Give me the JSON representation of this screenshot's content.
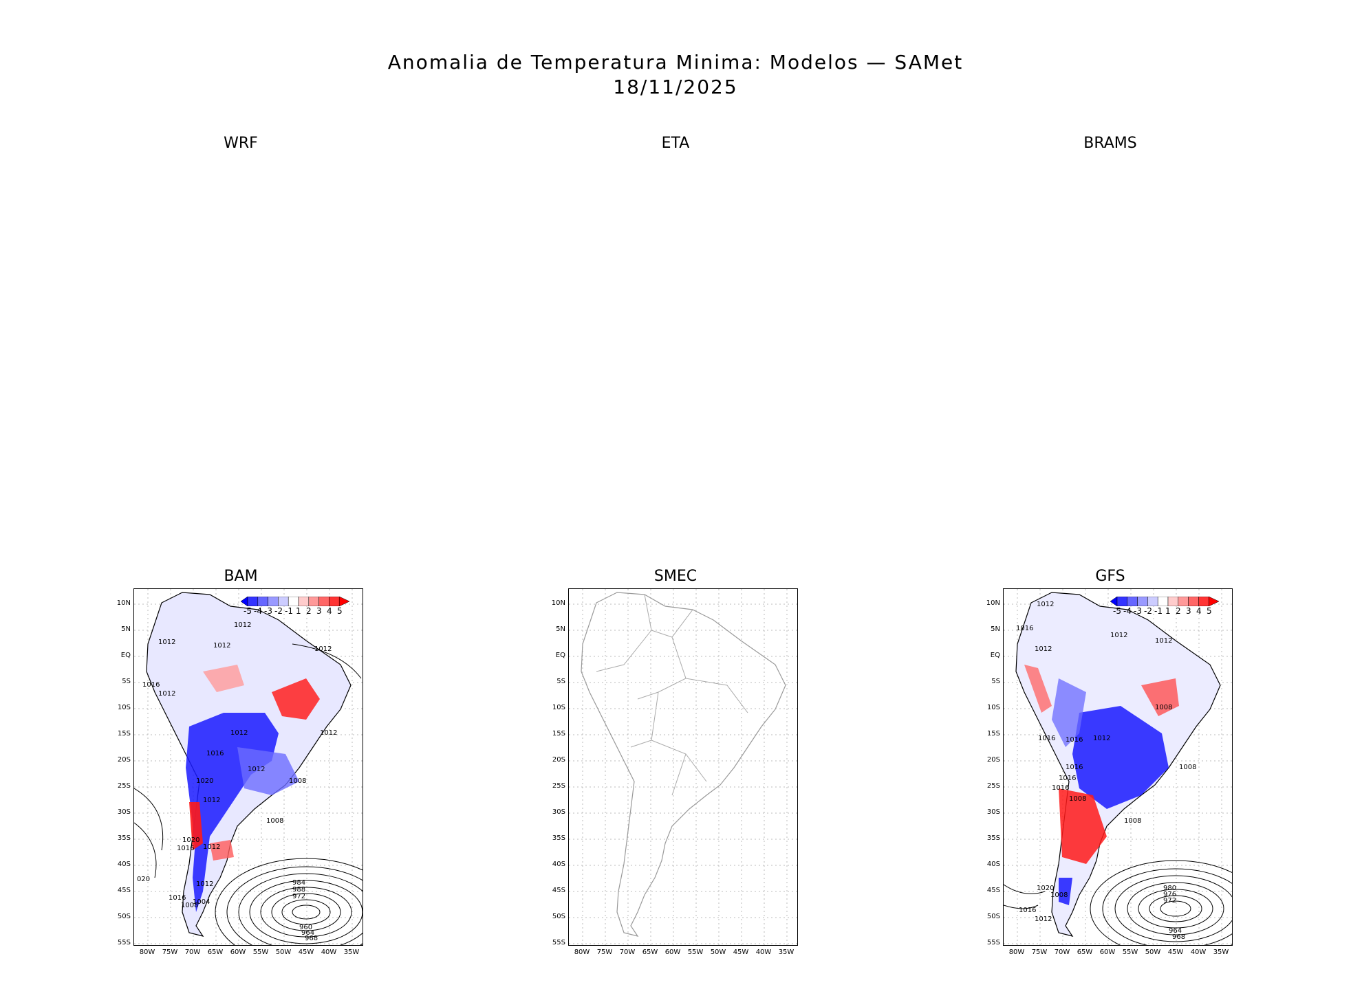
{
  "title": "Anomalia de Temperatura Minima: Modelos — SAMet",
  "date": "18/11/2025",
  "panels": [
    {
      "name": "WRF",
      "empty": true
    },
    {
      "name": "ETA",
      "empty": true
    },
    {
      "name": "BRAMS",
      "empty": true
    },
    {
      "name": "BAM",
      "empty": false
    },
    {
      "name": "SMEC",
      "empty": false
    },
    {
      "name": "GFS",
      "empty": false
    }
  ],
  "lat_labels": [
    "10N",
    "5N",
    "EQ",
    "5S",
    "10S",
    "15S",
    "20S",
    "25S",
    "30S",
    "35S",
    "40S",
    "45S",
    "50S",
    "55S"
  ],
  "lon_labels": [
    "80W",
    "75W",
    "70W",
    "65W",
    "60W",
    "55W",
    "50W",
    "45W",
    "40W",
    "35W"
  ],
  "legend_ticks": [
    "-5",
    "-4",
    "-3",
    "-2",
    "-1",
    "1",
    "2",
    "3",
    "4",
    "5"
  ],
  "legend_colors": [
    "#0000ff",
    "#3333ff",
    "#6666ff",
    "#9999ff",
    "#ccccff",
    "#ffffff",
    "#ffcccc",
    "#ff9999",
    "#ff6666",
    "#ff3333",
    "#ff0000"
  ],
  "bam_isobars": [
    "1012",
    "1012",
    "1012",
    "1012",
    "1016",
    "1012",
    "1012",
    "1012",
    "1016",
    "1012",
    "1020",
    "1012",
    "1008",
    "1008",
    "1020",
    "1016",
    "1012",
    "1012",
    "1016",
    "1004",
    "1008",
    "020",
    "984",
    "988",
    "972",
    "960",
    "964",
    "968"
  ],
  "gfs_isobars": [
    "1012",
    "1016",
    "1012",
    "1012",
    "1012",
    "1016",
    "1008",
    "1016",
    "1016",
    "1012",
    "1008",
    "1016",
    "1016",
    "1008",
    "1008",
    "1020",
    "1008",
    "1016",
    "1012",
    "980",
    "976",
    "972",
    "964",
    "968"
  ]
}
